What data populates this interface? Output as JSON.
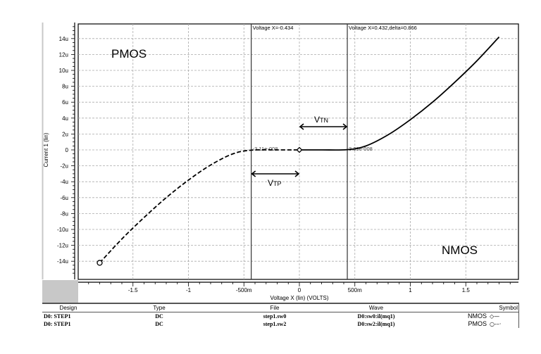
{
  "chart_data": {
    "type": "line",
    "title": "",
    "xlabel": "Voltage X (lin) (VOLTS)",
    "ylabel": "Current 1 (lin)",
    "xlim": [
      -1.9,
      2.0
    ],
    "ylim": [
      -16,
      16
    ],
    "x_ticks": [
      -1.5,
      -1,
      -0.5,
      0,
      0.5,
      1,
      1.5
    ],
    "x_tick_labels": [
      "-1.5",
      "-1",
      "-500m",
      "0",
      "500m",
      "1",
      "1.5"
    ],
    "y_ticks": [
      14,
      12,
      10,
      8,
      6,
      4,
      2,
      0,
      -2,
      -4,
      -6,
      -8,
      -10,
      -12,
      -14
    ],
    "y_tick_labels": [
      "14u",
      "12u",
      "10u",
      "8u",
      "6u",
      "4u",
      "2u",
      "0",
      "-2u",
      "-4u",
      "-6u",
      "-8u",
      "-10u",
      "-12u",
      "-14u"
    ],
    "grid": true,
    "series": [
      {
        "name": "NMOS",
        "wave": "D0:sw0:il(mq1)",
        "style": "solid",
        "marker": "diamond",
        "x": [
          0,
          0.2,
          0.432,
          0.6,
          0.8,
          1.0,
          1.2,
          1.4,
          1.6,
          1.8
        ],
        "y_uA": [
          0,
          0,
          0.0339,
          0.5,
          1.9,
          3.8,
          6.0,
          8.5,
          11.2,
          14.2
        ]
      },
      {
        "name": "PMOS",
        "wave": "D0:sw2:il(mq1)",
        "style": "dashed",
        "marker": "circle",
        "x": [
          -1.8,
          -1.6,
          -1.4,
          -1.2,
          -1.0,
          -0.8,
          -0.6,
          -0.434,
          -0.2,
          0
        ],
        "y_uA": [
          -14.2,
          -11.2,
          -8.5,
          -6.0,
          -3.8,
          -1.9,
          -0.5,
          -0.0311,
          0,
          0
        ]
      }
    ],
    "cursors": [
      {
        "x": -0.434,
        "label": "Voltage X=-0.434",
        "value_label": "-3.11e-008"
      },
      {
        "x": 0.432,
        "label": "Voltage X=0.432,delta=0.866",
        "value_label": "3.39e-008"
      }
    ],
    "annotations": [
      {
        "text": "PMOS",
        "position": "top-left"
      },
      {
        "text": "NMOS",
        "position": "bottom-right"
      },
      {
        "text": "VTN",
        "main": "V",
        "sub": "TN",
        "span": [
          0,
          0.432
        ]
      },
      {
        "text": "VTP",
        "main": "V",
        "sub": "TP",
        "span": [
          -0.434,
          0
        ]
      }
    ],
    "legend_position": "bottom-table"
  },
  "legend": {
    "headers": {
      "design": "Design",
      "type": "Type",
      "file": "File",
      "wave": "Wave",
      "symbol": "Symbol"
    },
    "rows": [
      {
        "design": "D0: STEP1",
        "type": "DC",
        "file": "step1.sw0",
        "wave": "D0:sw0:il(mq1)",
        "label": "NMOS",
        "symbol": "◇—"
      },
      {
        "design": "D0: STEP1",
        "type": "DC",
        "file": "step1.sw2",
        "wave": "D0:sw2:il(mq1)",
        "label": "PMOS",
        "symbol": "○-–·"
      }
    ]
  }
}
